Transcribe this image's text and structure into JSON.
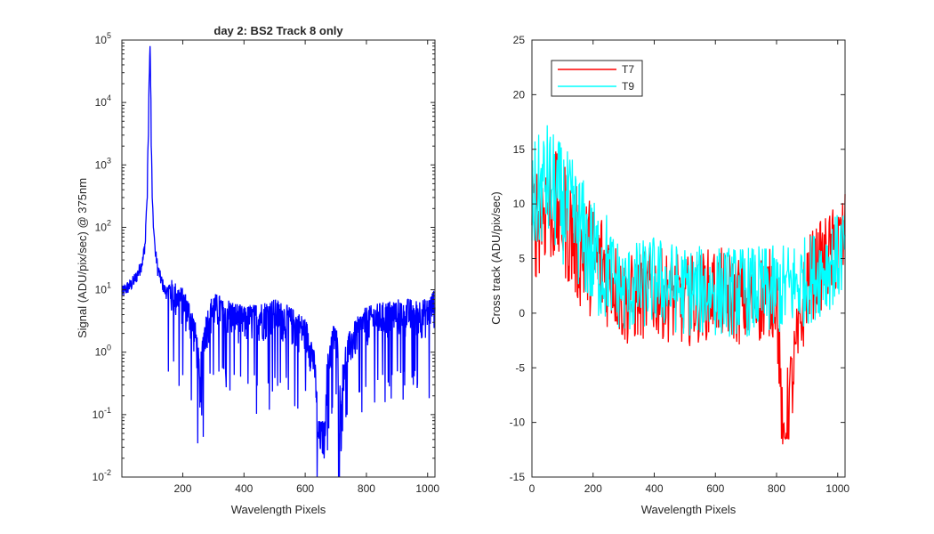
{
  "chart_data": [
    {
      "type": "line",
      "title": "day 2: BS2   Track 8 only",
      "xlabel": "Wavelength Pixels",
      "ylabel": "Signal (ADU/pix/sec) @ 375nm",
      "xlim": [
        1,
        1024
      ],
      "ylim": [
        0.01,
        100000
      ],
      "yscale": "log",
      "xticks": [
        200,
        400,
        600,
        800,
        1000
      ],
      "yticks": [
        {
          "base": "10",
          "exp": "-2"
        },
        {
          "base": "10",
          "exp": "-1"
        },
        {
          "base": "10",
          "exp": "0"
        },
        {
          "base": "10",
          "exp": "1"
        },
        {
          "base": "10",
          "exp": "2"
        },
        {
          "base": "10",
          "exp": "3"
        },
        {
          "base": "10",
          "exp": "4"
        },
        {
          "base": "10",
          "exp": "5"
        }
      ],
      "grid": false,
      "series": [
        {
          "color": "#0000ff",
          "x": [
            1,
            10,
            20,
            30,
            40,
            50,
            60,
            70,
            78,
            84,
            88,
            91,
            93,
            95,
            97,
            100,
            104,
            110,
            118,
            128,
            140,
            150,
            200,
            256,
            300,
            400,
            500,
            600,
            640,
            665,
            700,
            710,
            800,
            900,
            1000,
            1024
          ],
          "y": [
            9,
            10,
            11,
            12,
            14,
            17,
            22,
            30,
            60,
            300,
            3000,
            30000,
            80000,
            20000,
            2000,
            300,
            100,
            40,
            22,
            15,
            10,
            9,
            6,
            0.13,
            5,
            3,
            4,
            2,
            0.045,
            0.045,
            2,
            0.045,
            3,
            4,
            4,
            6
          ]
        }
      ]
    },
    {
      "type": "line",
      "title": "",
      "xlabel": "Wavelength Pixels",
      "ylabel": "Cross track (ADU/pix/sec)",
      "xlim": [
        0,
        1024
      ],
      "ylim": [
        -15,
        25
      ],
      "xticks": [
        "0",
        "200",
        "400",
        "600",
        "800",
        "1000"
      ],
      "yticks": [
        "-15",
        "-10",
        "-5",
        "0",
        "5",
        "10",
        "15",
        "20",
        "25"
      ],
      "grid": false,
      "legend": "top-left",
      "series": [
        {
          "name": "T7",
          "color": "#ff0000",
          "x": [
            0,
            50,
            100,
            150,
            200,
            250,
            300,
            400,
            500,
            600,
            700,
            800,
            820,
            900,
            1000,
            1024
          ],
          "y": [
            8,
            10,
            9,
            6,
            5,
            4,
            1,
            2,
            1,
            2,
            1,
            2,
            -12,
            3,
            6,
            7
          ]
        },
        {
          "name": "T9",
          "color": "#00ffff",
          "x": [
            0,
            50,
            100,
            150,
            200,
            250,
            300,
            400,
            500,
            600,
            700,
            800,
            900,
            1000,
            1024
          ],
          "y": [
            10,
            12,
            10,
            8,
            5,
            4,
            2,
            3,
            2,
            2,
            2,
            2,
            3,
            5,
            6
          ]
        }
      ]
    }
  ]
}
